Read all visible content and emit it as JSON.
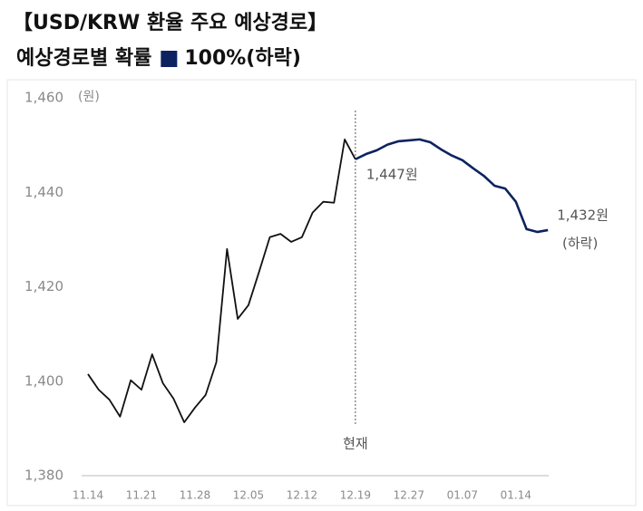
{
  "chart_data": {
    "type": "line",
    "title": "【USD/KRW 환율 주요 예상경로】",
    "subtitle": "예상경로별 확률",
    "y_unit": "(원)",
    "x": [
      0,
      1,
      2,
      3,
      4,
      5,
      6,
      7,
      8,
      9,
      10,
      11,
      12,
      13,
      14,
      15,
      16,
      17,
      18,
      19,
      20,
      21,
      22,
      23,
      24,
      25,
      26,
      27,
      28,
      29,
      30,
      31,
      32,
      33,
      34,
      35,
      36,
      37,
      38,
      39,
      40,
      41,
      42,
      43
    ],
    "xlim": [
      -1,
      44
    ],
    "xticks": [
      {
        "value": 0,
        "label": "11.14"
      },
      {
        "value": 5,
        "label": "11.21"
      },
      {
        "value": 10,
        "label": "11.28"
      },
      {
        "value": 15,
        "label": "12.05"
      },
      {
        "value": 20,
        "label": "12.12"
      },
      {
        "value": 25,
        "label": "12.19"
      },
      {
        "value": 30,
        "label": "12.27"
      },
      {
        "value": 35,
        "label": "01.07"
      },
      {
        "value": 40,
        "label": "01.14"
      }
    ],
    "ylim": [
      1380,
      1460
    ],
    "yticks": [
      {
        "value": 1380,
        "label": "1,380"
      },
      {
        "value": 1400,
        "label": "1,400"
      },
      {
        "value": 1420,
        "label": "1,420"
      },
      {
        "value": 1440,
        "label": "1,440"
      },
      {
        "value": 1460,
        "label": "1,460"
      }
    ],
    "series": [
      {
        "color": "#111111",
        "values": [
          1401.5,
          1398.2,
          1396.1,
          1392.5,
          1400.2,
          1398.2,
          1405.7,
          1399.6,
          1396.3,
          1391.3,
          1394.4,
          1397.1,
          1404.0,
          1428.0,
          1413.2,
          1416.1,
          1423.2,
          1430.5,
          1431.2,
          1429.5,
          1430.5,
          1435.7,
          1438.0,
          1437.8,
          1451.2,
          1447,
          null,
          null,
          null,
          null,
          null,
          null,
          null,
          null,
          null,
          null,
          null,
          null,
          null,
          null,
          null,
          null,
          null,
          null
        ]
      },
      {
        "name": "100%(하락)",
        "color": "#0d2260",
        "values": [
          null,
          null,
          null,
          null,
          null,
          null,
          null,
          null,
          null,
          null,
          null,
          null,
          null,
          null,
          null,
          null,
          null,
          null,
          null,
          null,
          null,
          null,
          null,
          null,
          null,
          1447,
          1448.1,
          1448.9,
          1450.1,
          1450.8,
          1451.0,
          1451.2,
          1450.6,
          1449.1,
          1447.8,
          1446.8,
          1445.1,
          1443.5,
          1441.4,
          1440.8,
          1438.0,
          1432.2,
          1431.6,
          1432
        ],
        "value_labels": [
          null,
          null,
          null,
          null,
          null,
          null,
          null,
          null,
          null,
          null,
          null,
          null,
          null,
          null,
          null,
          null,
          null,
          null,
          null,
          null,
          null,
          null,
          null,
          null,
          null,
          "1,447원",
          null,
          null,
          null,
          null,
          null,
          null,
          null,
          null,
          null,
          null,
          null,
          null,
          null,
          null,
          null,
          null,
          null,
          "1,432원"
        ]
      }
    ],
    "vline": {
      "x": 25,
      "label": "현재"
    },
    "annotations": [
      "(하락)"
    ]
  }
}
